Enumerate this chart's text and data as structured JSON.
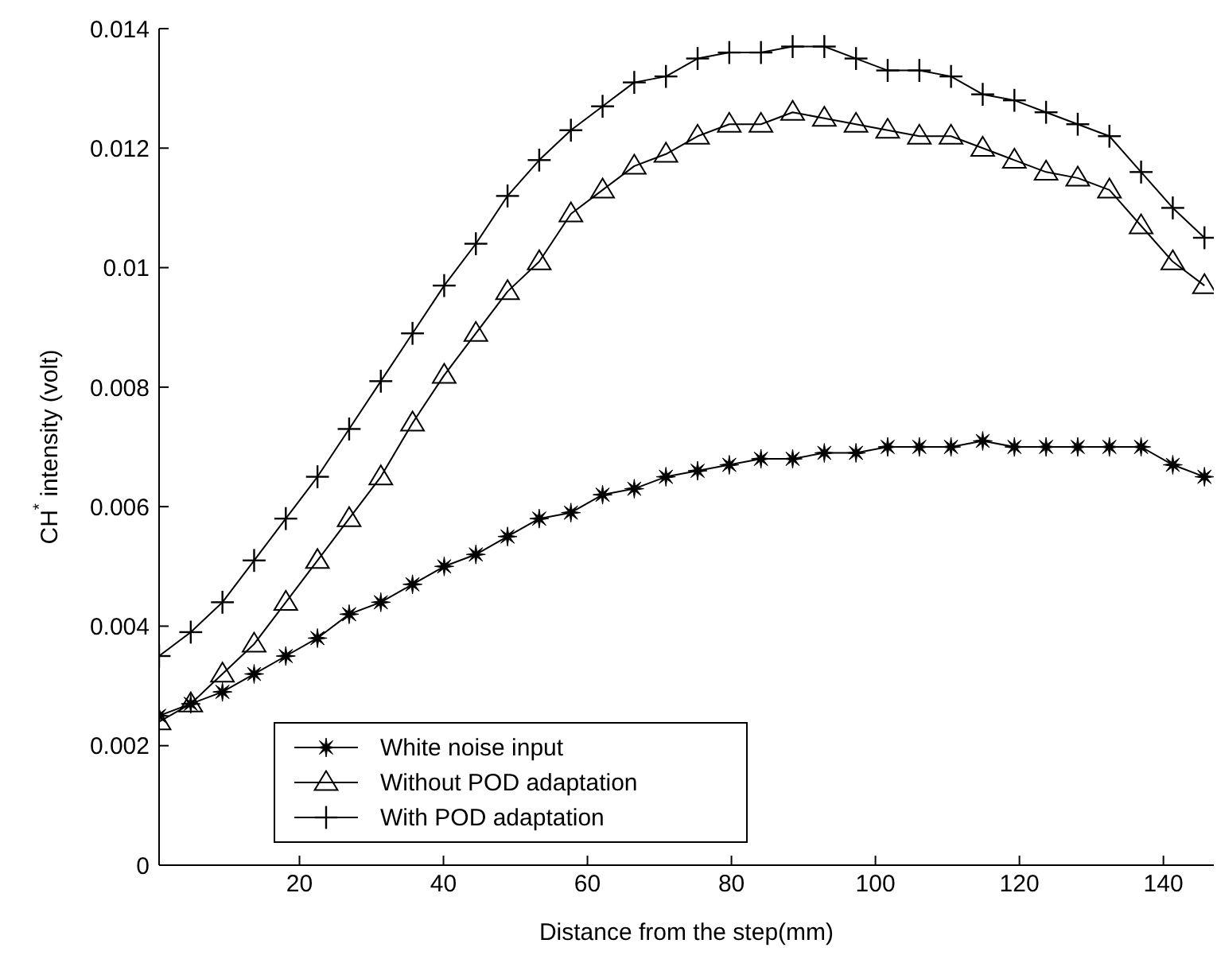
{
  "chart_data": {
    "type": "line",
    "xlabel": "Distance from the step(mm)",
    "ylabel": "CH$^{*}$ intensity (volt)",
    "x": [
      0.5,
      4.9,
      9.3,
      13.7,
      18.1,
      22.5,
      26.9,
      31.3,
      35.7,
      40.1,
      44.5,
      48.9,
      53.3,
      57.7,
      62.1,
      66.5,
      70.9,
      75.3,
      79.7,
      84.1,
      88.5,
      92.9,
      97.3,
      101.7,
      106.1,
      110.5,
      114.9,
      119.3,
      123.7,
      128.1,
      132.5,
      136.9,
      141.3,
      145.7
    ],
    "series": [
      {
        "name": "White noise input",
        "color": "#000000",
        "marker": "star",
        "values": [
          0.0025,
          0.0027,
          0.0029,
          0.0032,
          0.0035,
          0.0038,
          0.0042,
          0.0044,
          0.0047,
          0.005,
          0.0052,
          0.0055,
          0.0058,
          0.0059,
          0.0062,
          0.0063,
          0.0065,
          0.0066,
          0.0067,
          0.0068,
          0.0068,
          0.0069,
          0.0069,
          0.007,
          0.007,
          0.007,
          0.0071,
          0.007,
          0.007,
          0.007,
          0.007,
          0.007,
          0.0067,
          0.0065
        ]
      },
      {
        "name": "Without POD adaptation",
        "color": "#000000",
        "marker": "triangle",
        "values": [
          0.0024,
          0.0027,
          0.0032,
          0.0037,
          0.0044,
          0.0051,
          0.0058,
          0.0065,
          0.0074,
          0.0082,
          0.0089,
          0.0096,
          0.0101,
          0.0109,
          0.0113,
          0.0117,
          0.0119,
          0.0122,
          0.0124,
          0.0124,
          0.0126,
          0.0125,
          0.0124,
          0.0123,
          0.0122,
          0.0122,
          0.012,
          0.0118,
          0.0116,
          0.0115,
          0.0113,
          0.0107,
          0.0101,
          0.0097
        ]
      },
      {
        "name": "With POD adaptation",
        "color": "#000000",
        "marker": "cross",
        "values": [
          0.0035,
          0.0039,
          0.0044,
          0.0051,
          0.0058,
          0.0065,
          0.0073,
          0.0081,
          0.0089,
          0.0097,
          0.0104,
          0.0112,
          0.0118,
          0.0123,
          0.0127,
          0.0131,
          0.0132,
          0.0135,
          0.0136,
          0.0136,
          0.0137,
          0.0137,
          0.0135,
          0.0133,
          0.0133,
          0.0132,
          0.0129,
          0.0128,
          0.0126,
          0.0124,
          0.0122,
          0.0116,
          0.011,
          0.0105
        ]
      }
    ],
    "xlim": [
      0.5,
      147
    ],
    "xticks": [
      20,
      40,
      60,
      80,
      100,
      120,
      140
    ],
    "ylim": [
      0,
      0.014
    ],
    "yticks": [
      0,
      0.002,
      0.004,
      0.006,
      0.008,
      0.01,
      0.012,
      0.014
    ],
    "grid": false,
    "legend": "bottom left",
    "line_style": "solid"
  }
}
